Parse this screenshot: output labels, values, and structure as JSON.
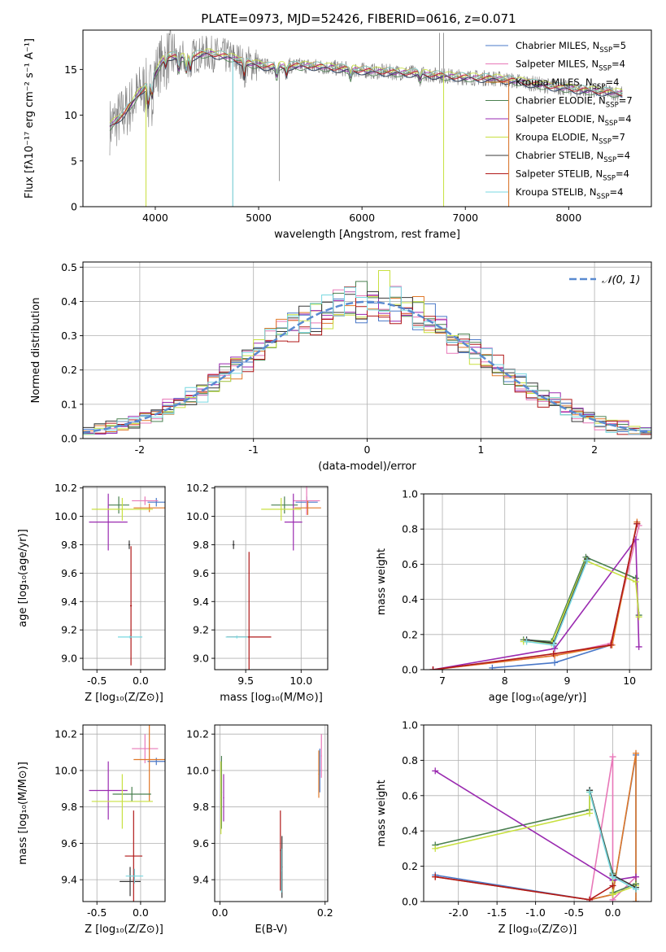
{
  "figure": {
    "title": "PLATE=0973, MJD=52426, FIBERID=0616, z=0.071"
  },
  "colors": {
    "Chabrier MILES": "#4a78c8",
    "Salpeter MILES": "#e878b8",
    "Kroupa MILES": "#e07828",
    "Chabrier ELODIE": "#4a8050",
    "Salpeter ELODIE": "#9a2ab0",
    "Kroupa ELODIE": "#c8e040",
    "Chabrier STELIB": "#383838",
    "Salpeter STELIB": "#b01818",
    "Kroupa STELIB": "#78d8e0",
    "data": "#808080",
    "normal": "#5a8ad0"
  },
  "chart_data": [
    {
      "id": "spectrum",
      "type": "line",
      "xlabel": "wavelength [Angstrom, rest frame]",
      "ylabel": "Flux [fλ10⁻¹⁷ erg cm⁻² s⁻¹ A⁻¹]",
      "xlim": [
        3300,
        8800
      ],
      "ylim": [
        0,
        19.3
      ],
      "xticks": [
        4000,
        5000,
        6000,
        7000,
        8000
      ],
      "yticks": [
        0,
        5,
        10,
        15
      ],
      "continuum_x": [
        3560,
        3700,
        3850,
        3950,
        4100,
        4300,
        4500,
        4700,
        4900,
        5100,
        5300,
        5500,
        5700,
        5900,
        6100,
        6300,
        6500,
        6700,
        6900,
        7100,
        7300,
        7450,
        7800,
        8100,
        8500
      ],
      "continuum_y": [
        8.8,
        10.2,
        12.5,
        13.6,
        16.5,
        16.3,
        16.8,
        16.4,
        15.7,
        15.3,
        15.4,
        15.4,
        15.2,
        15.0,
        14.8,
        14.7,
        14.6,
        14.4,
        14.2,
        14.1,
        14.0,
        13.8,
        13.2,
        12.8,
        12.4
      ],
      "legend": [
        {
          "label": "Chabrier MILES, N",
          "sub": "SSP",
          "tail": "=5"
        },
        {
          "label": "Salpeter MILES, N",
          "sub": "SSP",
          "tail": "=4"
        },
        {
          "label": "Kroupa MILES, N",
          "sub": "SSP",
          "tail": "=4"
        },
        {
          "label": "Chabrier ELODIE, N",
          "sub": "SSP",
          "tail": "=7"
        },
        {
          "label": "Salpeter ELODIE, N",
          "sub": "SSP",
          "tail": "=4"
        },
        {
          "label": "Kroupa ELODIE, N",
          "sub": "SSP",
          "tail": "=7"
        },
        {
          "label": "Chabrier STELIB, N",
          "sub": "SSP",
          "tail": "=4"
        },
        {
          "label": "Salpeter STELIB, N",
          "sub": "SSP",
          "tail": "=4"
        },
        {
          "label": "Kroupa STELIB, N",
          "sub": "SSP",
          "tail": "=4"
        }
      ]
    },
    {
      "id": "residuals",
      "type": "line",
      "xlabel": "(data-model)/error",
      "ylabel": "Normed distribution",
      "xlim": [
        -2.5,
        2.5
      ],
      "ylim": [
        0,
        0.515
      ],
      "xticks": [
        -2,
        -1,
        0,
        1,
        2
      ],
      "yticks": [
        0.0,
        0.1,
        0.2,
        0.3,
        0.4,
        0.5
      ],
      "legend": "𝒩(0, 1)",
      "bin_width": 0.1
    },
    {
      "id": "age_vs_Z",
      "type": "scatter",
      "xlabel": "Z [log₁₀(Z/Z⊙)]",
      "ylabel": "age  [log₁₀(age/yr)]",
      "xlim": [
        -0.66,
        0.28
      ],
      "ylim": [
        8.92,
        10.21
      ],
      "xticks": [
        -0.5,
        0.0
      ],
      "yticks": [
        9.0,
        9.2,
        9.4,
        9.6,
        9.8,
        10.0,
        10.2
      ],
      "points": [
        {
          "c": "Chabrier MILES",
          "x": 0.18,
          "y": 10.1,
          "xerr": 0.1,
          "yerr": 0.03
        },
        {
          "c": "Salpeter MILES",
          "x": 0.05,
          "y": 10.11,
          "xerr": 0.15,
          "yerr": 0.03
        },
        {
          "c": "Kroupa MILES",
          "x": 0.1,
          "y": 10.06,
          "xerr": 0.18,
          "yerr": 0.03
        },
        {
          "c": "Chabrier ELODIE",
          "x": -0.25,
          "y": 10.08,
          "xerr": 0.12,
          "yerr": 0.06
        },
        {
          "c": "Salpeter ELODIE",
          "x": -0.37,
          "y": 9.96,
          "xerr": 0.22,
          "yerr": 0.2
        },
        {
          "c": "Kroupa ELODIE",
          "x": -0.21,
          "y": 10.05,
          "xerr": 0.35,
          "yerr": 0.08
        },
        {
          "c": "Chabrier STELIB",
          "x": -0.13,
          "y": 9.8,
          "xerr": 0.01,
          "yerr": 0.03
        },
        {
          "c": "Salpeter STELIB",
          "x": -0.11,
          "y": 9.37,
          "xerr": 0.01,
          "yerr": 0.42
        },
        {
          "c": "Kroupa STELIB",
          "x": -0.12,
          "y": 9.15,
          "xerr": 0.14,
          "yerr": 0.01
        }
      ]
    },
    {
      "id": "age_vs_mass",
      "type": "scatter",
      "xlabel": "mass [log₁₀(M/M⊙)]",
      "ylabel": "",
      "xlim": [
        9.22,
        10.24
      ],
      "ylim": [
        8.92,
        10.21
      ],
      "xticks": [
        9.5,
        10.0
      ],
      "yticks": [
        9.0,
        9.2,
        9.4,
        9.6,
        9.8,
        10.0,
        10.2
      ],
      "points": [
        {
          "c": "Chabrier MILES",
          "x": 10.05,
          "y": 10.1,
          "xerr": 0.1,
          "yerr": 0.04
        },
        {
          "c": "Salpeter MILES",
          "x": 10.05,
          "y": 10.11,
          "xerr": 0.12,
          "yerr": 0.1
        },
        {
          "c": "Kroupa MILES",
          "x": 10.06,
          "y": 10.06,
          "xerr": 0.12,
          "yerr": 0.05
        },
        {
          "c": "Chabrier ELODIE",
          "x": 9.85,
          "y": 10.08,
          "xerr": 0.12,
          "yerr": 0.06
        },
        {
          "c": "Salpeter ELODIE",
          "x": 9.93,
          "y": 9.96,
          "xerr": 0.08,
          "yerr": 0.2
        },
        {
          "c": "Kroupa ELODIE",
          "x": 9.82,
          "y": 10.05,
          "xerr": 0.18,
          "yerr": 0.08
        },
        {
          "c": "Chabrier STELIB",
          "x": 9.39,
          "y": 9.8,
          "xerr": 0.01,
          "yerr": 0.03
        },
        {
          "c": "Salpeter STELIB",
          "x": 9.53,
          "y": 9.15,
          "xerr": 0.2,
          "yerr": 0.6
        },
        {
          "c": "Kroupa STELIB",
          "x": 9.42,
          "y": 9.15,
          "xerr": 0.1,
          "yerr": 0.01
        }
      ]
    },
    {
      "id": "weight_vs_age",
      "type": "line",
      "xlabel": "age  [log₁₀(age/yr)]",
      "ylabel": "mass weight",
      "xlim": [
        6.7,
        10.35
      ],
      "ylim": [
        0,
        1.0
      ],
      "xticks": [
        7,
        8,
        9,
        10
      ],
      "yticks": [
        0.0,
        0.2,
        0.4,
        0.6,
        0.8,
        1.0
      ],
      "series": [
        {
          "c": "Chabrier MILES",
          "x": [
            7.8,
            8.8,
            9.7,
            10.12
          ],
          "y": [
            0.01,
            0.04,
            0.14,
            0.83
          ]
        },
        {
          "c": "Salpeter MILES",
          "x": [
            6.85,
            8.8,
            9.7,
            10.15
          ],
          "y": [
            0.0,
            0.08,
            0.15,
            0.82
          ]
        },
        {
          "c": "Kroupa MILES",
          "x": [
            6.85,
            8.8,
            9.72,
            10.12
          ],
          "y": [
            0.0,
            0.08,
            0.14,
            0.84
          ]
        },
        {
          "c": "Chabrier ELODIE",
          "x": [
            8.3,
            8.75,
            9.3,
            10.1,
            10.15
          ],
          "y": [
            0.17,
            0.16,
            0.64,
            0.52,
            0.31
          ]
        },
        {
          "c": "Salpeter ELODIE",
          "x": [
            6.85,
            8.8,
            10.1,
            10.15
          ],
          "y": [
            0.0,
            0.12,
            0.74,
            0.13
          ]
        },
        {
          "c": "Kroupa ELODIE",
          "x": [
            8.3,
            8.75,
            9.3,
            10.1,
            10.15
          ],
          "y": [
            0.16,
            0.15,
            0.62,
            0.5,
            0.3
          ]
        },
        {
          "c": "Chabrier STELIB",
          "x": [
            8.35,
            8.78,
            9.32
          ],
          "y": [
            0.17,
            0.15,
            0.63
          ]
        },
        {
          "c": "Salpeter STELIB",
          "x": [
            6.85,
            8.78,
            9.7,
            10.12
          ],
          "y": [
            0.0,
            0.09,
            0.14,
            0.83
          ]
        },
        {
          "c": "Kroupa STELIB",
          "x": [
            8.35,
            8.78,
            9.32
          ],
          "y": [
            0.16,
            0.14,
            0.62
          ]
        }
      ]
    },
    {
      "id": "mass_vs_Z",
      "type": "scatter",
      "xlabel": "Z [log₁₀(Z/Z⊙)]",
      "ylabel": "mass [log₁₀(M/M⊙)]",
      "xlim": [
        -0.66,
        0.28
      ],
      "ylim": [
        9.28,
        10.25
      ],
      "xticks": [
        -0.5,
        0.0
      ],
      "yticks": [
        9.4,
        9.6,
        9.8,
        10.0,
        10.2
      ],
      "points": [
        {
          "c": "Chabrier MILES",
          "x": 0.18,
          "y": 10.05,
          "xerr": 0.1,
          "yerr": 0.02
        },
        {
          "c": "Salpeter MILES",
          "x": 0.05,
          "y": 10.12,
          "xerr": 0.15,
          "yerr": 0.08
        },
        {
          "c": "Kroupa MILES",
          "x": 0.1,
          "y": 10.06,
          "xerr": 0.18,
          "yerr": 0.23
        },
        {
          "c": "Chabrier ELODIE",
          "x": -0.1,
          "y": 9.87,
          "xerr": 0.22,
          "yerr": 0.04
        },
        {
          "c": "Salpeter ELODIE",
          "x": -0.37,
          "y": 9.89,
          "xerr": 0.22,
          "yerr": 0.16
        },
        {
          "c": "Kroupa ELODIE",
          "x": -0.21,
          "y": 9.83,
          "xerr": 0.35,
          "yerr": 0.15
        },
        {
          "c": "Chabrier STELIB",
          "x": -0.12,
          "y": 9.39,
          "xerr": 0.12,
          "yerr": 0.08
        },
        {
          "c": "Salpeter STELIB",
          "x": -0.08,
          "y": 9.53,
          "xerr": 0.1,
          "yerr": 0.25
        },
        {
          "c": "Kroupa STELIB",
          "x": -0.07,
          "y": 9.42,
          "xerr": 0.1,
          "yerr": 0.04
        }
      ]
    },
    {
      "id": "mass_vs_EBV",
      "type": "scatter",
      "xlabel": "E(B-V)",
      "ylabel": "",
      "xlim": [
        -0.01,
        0.205
      ],
      "ylim": [
        9.28,
        10.25
      ],
      "xticks": [
        0.0,
        0.2
      ],
      "yticks": [
        9.4,
        9.6,
        9.8,
        10.0,
        10.2
      ],
      "points": [
        {
          "c": "Chabrier MILES",
          "x": 0.19,
          "y": 10.0,
          "xerr": 0.001,
          "yerr": 0.12
        },
        {
          "c": "Salpeter MILES",
          "x": 0.193,
          "y": 10.08,
          "xerr": 0.001,
          "yerr": 0.12
        },
        {
          "c": "Kroupa MILES",
          "x": 0.188,
          "y": 9.98,
          "xerr": 0.001,
          "yerr": 0.13
        },
        {
          "c": "Chabrier ELODIE",
          "x": 0.003,
          "y": 9.88,
          "xerr": 0.001,
          "yerr": 0.2
        },
        {
          "c": "Salpeter ELODIE",
          "x": 0.007,
          "y": 9.85,
          "xerr": 0.001,
          "yerr": 0.13
        },
        {
          "c": "Kroupa ELODIE",
          "x": 0.002,
          "y": 9.85,
          "xerr": 0.001,
          "yerr": 0.2
        },
        {
          "c": "Chabrier STELIB",
          "x": 0.118,
          "y": 9.47,
          "xerr": 0.001,
          "yerr": 0.17
        },
        {
          "c": "Salpeter STELIB",
          "x": 0.115,
          "y": 9.56,
          "xerr": 0.001,
          "yerr": 0.22
        },
        {
          "c": "Kroupa STELIB",
          "x": 0.117,
          "y": 9.45,
          "xerr": 0.001,
          "yerr": 0.12
        }
      ]
    },
    {
      "id": "weight_vs_Z",
      "type": "line",
      "xlabel": "Z [log₁₀(Z/Z⊙)]",
      "ylabel": "mass weight",
      "xlim": [
        -2.45,
        0.5
      ],
      "ylim": [
        0,
        1.0
      ],
      "xticks": [
        -2.0,
        -1.5,
        -1.0,
        -0.5,
        0.0
      ],
      "yticks": [
        0.0,
        0.2,
        0.4,
        0.6,
        0.8,
        1.0
      ],
      "series": [
        {
          "c": "Chabrier MILES",
          "x": [
            -2.3,
            -0.3,
            0.0,
            0.3,
            0.3
          ],
          "y": [
            0.15,
            0.01,
            0.04,
            0.83,
            0.0
          ]
        },
        {
          "c": "Salpeter MILES",
          "x": [
            -0.3,
            0.0,
            0.0,
            0.3
          ],
          "y": [
            0.0,
            0.82,
            0.01,
            0.14
          ]
        },
        {
          "c": "Kroupa MILES",
          "x": [
            -2.3,
            -0.3,
            0.0,
            0.3,
            0.3
          ],
          "y": [
            0.14,
            0.01,
            0.04,
            0.84,
            0.0
          ]
        },
        {
          "c": "Chabrier ELODIE",
          "x": [
            -2.3,
            -0.3,
            -0.3,
            0.0,
            0.0,
            0.3
          ],
          "y": [
            0.32,
            0.52,
            0.63,
            0.16,
            0.05,
            0.1
          ]
        },
        {
          "c": "Salpeter ELODIE",
          "x": [
            -2.3,
            0.0,
            0.3
          ],
          "y": [
            0.74,
            0.12,
            0.14
          ]
        },
        {
          "c": "Kroupa ELODIE",
          "x": [
            -2.3,
            -0.3,
            -0.3,
            0.0,
            0.0,
            0.3
          ],
          "y": [
            0.3,
            0.5,
            0.62,
            0.15,
            0.04,
            0.09
          ]
        },
        {
          "c": "Chabrier STELIB",
          "x": [
            -0.3,
            0.0,
            0.3
          ],
          "y": [
            0.63,
            0.15,
            0.08
          ]
        },
        {
          "c": "Salpeter STELIB",
          "x": [
            -2.3,
            -0.3,
            0.0
          ],
          "y": [
            0.14,
            0.01,
            0.09
          ]
        },
        {
          "c": "Kroupa STELIB",
          "x": [
            -0.3,
            0.0,
            0.3
          ],
          "y": [
            0.62,
            0.14,
            0.07
          ]
        }
      ]
    }
  ]
}
